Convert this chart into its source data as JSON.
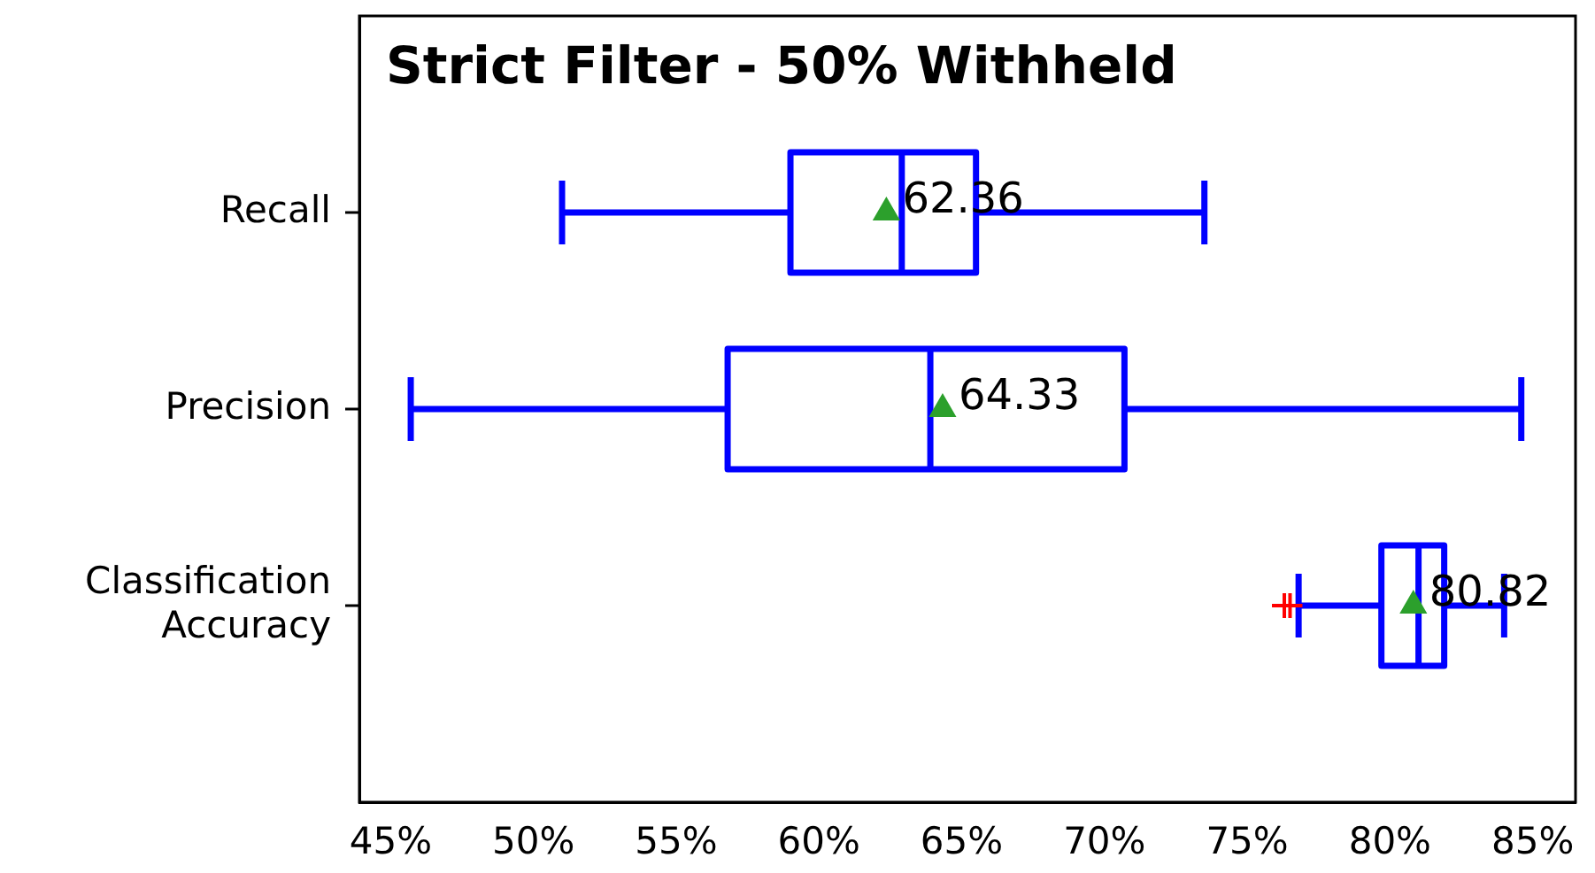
{
  "chart_data": {
    "type": "box",
    "title": "Strict Filter - 50% Withheld",
    "orientation": "horizontal",
    "categories": [
      "Recall",
      "Precision",
      "Classification Accuracy"
    ],
    "series": [
      {
        "color": "#0000ff",
        "boxes": [
          {
            "low": 51.0,
            "q1": 59.0,
            "median": 62.9,
            "q3": 65.5,
            "high": 73.5,
            "mean": 62.36
          },
          {
            "low": 45.7,
            "q1": 56.8,
            "median": 63.9,
            "q3": 70.7,
            "high": 84.6,
            "mean": 64.33
          },
          {
            "low": 76.8,
            "q1": 79.7,
            "median": 81.0,
            "q3": 81.9,
            "high": 84.0,
            "mean": 80.82,
            "outliers": [
              76.3,
              76.5
            ]
          }
        ],
        "value_labels": [
          "62.36",
          "64.33",
          "80.82"
        ]
      }
    ],
    "xlim": [
      43.9,
      86.5
    ],
    "xticks": [
      {
        "value": 45,
        "label": "45%"
      },
      {
        "value": 50,
        "label": "50%"
      },
      {
        "value": 55,
        "label": "55%"
      },
      {
        "value": 60,
        "label": "60%"
      },
      {
        "value": 65,
        "label": "65%"
      },
      {
        "value": 70,
        "label": "70%"
      },
      {
        "value": 75,
        "label": "75%"
      },
      {
        "value": 80,
        "label": "80%"
      },
      {
        "value": 85,
        "label": "85%"
      }
    ],
    "grid": false,
    "legend": false,
    "data_labels": true
  }
}
